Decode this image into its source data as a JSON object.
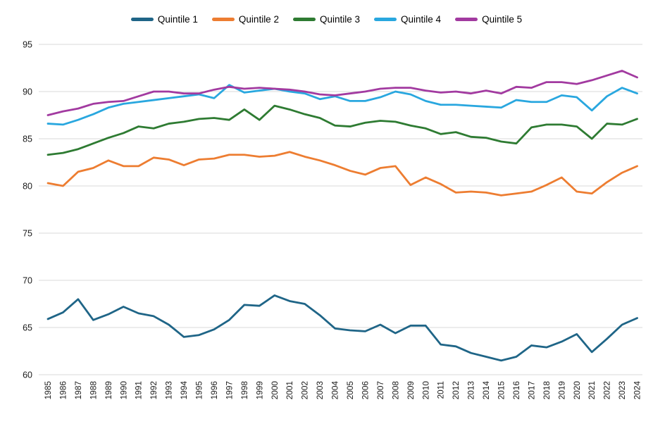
{
  "chart_data": {
    "type": "line",
    "title": "",
    "x": [
      "1985",
      "1986",
      "1987",
      "1988",
      "1989",
      "1990",
      "1991",
      "1992",
      "1993",
      "1994",
      "1995",
      "1996",
      "1997",
      "1998",
      "1999",
      "2000",
      "2001",
      "2002",
      "2003",
      "2004",
      "2005",
      "2006",
      "2007",
      "2008",
      "2009",
      "2010",
      "2011",
      "2012",
      "2013",
      "2014",
      "2015",
      "2016",
      "2017",
      "2018",
      "2019",
      "2020",
      "2021",
      "2022",
      "2023",
      "2024"
    ],
    "series": [
      {
        "name": "Quintile 1",
        "color": "#1F6587",
        "values": [
          65.9,
          66.6,
          68.0,
          65.8,
          66.4,
          67.2,
          66.5,
          66.2,
          65.3,
          64.0,
          64.2,
          64.8,
          65.8,
          67.4,
          67.3,
          68.4,
          67.8,
          67.5,
          66.3,
          64.9,
          64.7,
          64.6,
          65.3,
          64.4,
          65.2,
          65.2,
          63.2,
          63.0,
          62.3,
          61.9,
          61.5,
          61.9,
          63.1,
          62.9,
          63.5,
          64.3,
          62.4,
          63.8,
          65.3,
          66.0
        ]
      },
      {
        "name": "Quintile 2",
        "color": "#ED7D31",
        "values": [
          80.3,
          80.0,
          81.5,
          81.9,
          82.7,
          82.1,
          82.1,
          83.0,
          82.8,
          82.2,
          82.8,
          82.9,
          83.3,
          83.3,
          83.1,
          83.2,
          83.6,
          83.1,
          82.7,
          82.2,
          81.6,
          81.2,
          81.9,
          82.1,
          80.1,
          80.9,
          80.2,
          79.3,
          79.4,
          79.3,
          79.0,
          79.2,
          79.4,
          80.1,
          80.9,
          79.4,
          79.2,
          80.4,
          81.4,
          82.1
        ]
      },
      {
        "name": "Quintile 3",
        "color": "#2E7B32",
        "values": [
          83.3,
          83.5,
          83.9,
          84.5,
          85.1,
          85.6,
          86.3,
          86.1,
          86.6,
          86.8,
          87.1,
          87.2,
          87.0,
          88.1,
          87.0,
          88.5,
          88.1,
          87.6,
          87.2,
          86.4,
          86.3,
          86.7,
          86.9,
          86.8,
          86.4,
          86.1,
          85.5,
          85.7,
          85.2,
          85.1,
          84.7,
          84.5,
          86.2,
          86.5,
          86.5,
          86.3,
          85.0,
          86.6,
          86.5,
          87.1
        ]
      },
      {
        "name": "Quintile 4",
        "color": "#29A7DF",
        "values": [
          86.6,
          86.5,
          87.0,
          87.6,
          88.3,
          88.7,
          88.9,
          89.1,
          89.3,
          89.5,
          89.7,
          89.3,
          90.7,
          89.9,
          90.1,
          90.3,
          90.0,
          89.8,
          89.2,
          89.5,
          89.0,
          89.0,
          89.4,
          90.0,
          89.7,
          89.0,
          88.6,
          88.6,
          88.5,
          88.4,
          88.3,
          89.1,
          88.9,
          88.9,
          89.6,
          89.4,
          88.0,
          89.5,
          90.4,
          89.8
        ]
      },
      {
        "name": "Quintile 5",
        "color": "#A23AA0",
        "values": [
          87.5,
          87.9,
          88.2,
          88.7,
          88.9,
          89.0,
          89.5,
          90.0,
          90.0,
          89.8,
          89.8,
          90.2,
          90.5,
          90.3,
          90.4,
          90.3,
          90.2,
          90.0,
          89.7,
          89.6,
          89.8,
          90.0,
          90.3,
          90.4,
          90.4,
          90.1,
          89.9,
          90.0,
          89.8,
          90.1,
          89.8,
          90.5,
          90.4,
          91.0,
          91.0,
          90.8,
          91.2,
          91.7,
          92.2,
          91.5
        ]
      }
    ],
    "xlabel": "",
    "ylabel": "",
    "ylim": [
      60,
      95
    ],
    "ytick_step": 5,
    "yticks": [
      "60",
      "65",
      "70",
      "75",
      "80",
      "85",
      "90",
      "95"
    ],
    "grid": "horizontal",
    "grid_color": "#D9D9D9",
    "text_color": "#1A1A1A",
    "legend_position": "top"
  }
}
